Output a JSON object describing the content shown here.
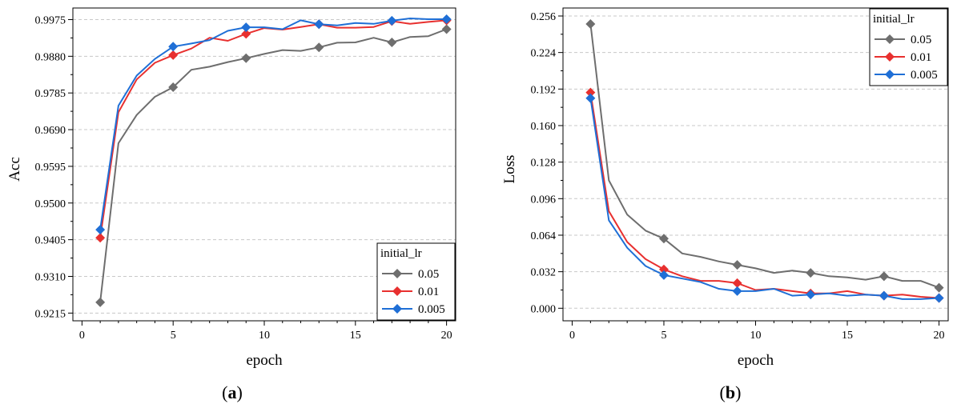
{
  "panels": [
    {
      "caption_letter": "a",
      "chart_data": {
        "type": "line",
        "xlabel": "epoch",
        "ylabel": "Acc",
        "xlim": [
          -0.5,
          20.5
        ],
        "ylim": [
          0.9195,
          1.0005
        ],
        "xticks": [
          0,
          5,
          10,
          15,
          20
        ],
        "yticks": [
          0.9215,
          0.931,
          0.9405,
          0.95,
          0.9595,
          0.969,
          0.9785,
          0.988,
          0.9975
        ],
        "ytick_labels": [
          "0.9215",
          "0.9310",
          "0.9405",
          "0.9500",
          "0.9595",
          "0.9690",
          "0.9785",
          "0.9880",
          "0.9975"
        ],
        "grid": "horizontal dashed",
        "legend_title": "initial_lr",
        "legend_position": "bottom-right",
        "marker_epochs": [
          1,
          5,
          9,
          13,
          17,
          20
        ],
        "x": [
          1,
          2,
          3,
          4,
          5,
          6,
          7,
          8,
          9,
          10,
          11,
          12,
          13,
          14,
          15,
          16,
          17,
          18,
          19,
          20
        ],
        "series": [
          {
            "name": "0.05",
            "color": "#6e6e6e",
            "values": [
              0.9243,
              0.9655,
              0.9728,
              0.9775,
              0.98,
              0.9845,
              0.9853,
              0.9865,
              0.9875,
              0.9886,
              0.9896,
              0.9894,
              0.9903,
              0.9915,
              0.9916,
              0.9928,
              0.9916,
              0.993,
              0.9932,
              0.995
            ]
          },
          {
            "name": "0.01",
            "color": "#e8302f",
            "values": [
              0.941,
              0.9735,
              0.982,
              0.9863,
              0.9883,
              0.99,
              0.9928,
              0.992,
              0.9938,
              0.9953,
              0.9949,
              0.9956,
              0.9963,
              0.9954,
              0.9954,
              0.9956,
              0.9971,
              0.9964,
              0.9969,
              0.9973
            ]
          },
          {
            "name": "0.005",
            "color": "#1f6fd6",
            "values": [
              0.9431,
              0.9752,
              0.983,
              0.9873,
              0.9905,
              0.9913,
              0.9922,
              0.9946,
              0.9955,
              0.9955,
              0.995,
              0.9973,
              0.9963,
              0.996,
              0.9966,
              0.9964,
              0.9972,
              0.9978,
              0.9976,
              0.9976
            ]
          }
        ]
      }
    },
    {
      "caption_letter": "b",
      "chart_data": {
        "type": "line",
        "xlabel": "epoch",
        "ylabel": "Loss",
        "xlim": [
          -0.5,
          20.5
        ],
        "ylim": [
          -0.011,
          0.263
        ],
        "xticks": [
          0,
          5,
          10,
          15,
          20
        ],
        "yticks": [
          0,
          0.032,
          0.064,
          0.096,
          0.128,
          0.16,
          0.192,
          0.224,
          0.256
        ],
        "ytick_labels": [
          "0.000",
          "0.032",
          "0.064",
          "0.096",
          "0.128",
          "0.160",
          "0.192",
          "0.224",
          "0.256"
        ],
        "grid": "horizontal dashed",
        "legend_title": "initial_lr",
        "legend_position": "top-right",
        "marker_epochs": [
          1,
          5,
          9,
          13,
          17,
          20
        ],
        "x": [
          1,
          2,
          3,
          4,
          5,
          6,
          7,
          8,
          9,
          10,
          11,
          12,
          13,
          14,
          15,
          16,
          17,
          18,
          19,
          20
        ],
        "series": [
          {
            "name": "0.05",
            "color": "#6e6e6e",
            "values": [
              0.249,
              0.112,
              0.082,
              0.068,
              0.061,
              0.048,
              0.045,
              0.041,
              0.038,
              0.035,
              0.031,
              0.033,
              0.031,
              0.028,
              0.027,
              0.025,
              0.028,
              0.024,
              0.024,
              0.018
            ]
          },
          {
            "name": "0.01",
            "color": "#e8302f",
            "values": [
              0.189,
              0.085,
              0.058,
              0.043,
              0.034,
              0.028,
              0.024,
              0.024,
              0.022,
              0.016,
              0.017,
              0.015,
              0.013,
              0.013,
              0.015,
              0.012,
              0.011,
              0.012,
              0.01,
              0.009
            ]
          },
          {
            "name": "0.005",
            "color": "#1f6fd6",
            "values": [
              0.184,
              0.077,
              0.053,
              0.037,
              0.029,
              0.026,
              0.023,
              0.017,
              0.015,
              0.015,
              0.017,
              0.011,
              0.012,
              0.013,
              0.011,
              0.012,
              0.011,
              0.008,
              0.008,
              0.009
            ]
          }
        ]
      }
    }
  ]
}
